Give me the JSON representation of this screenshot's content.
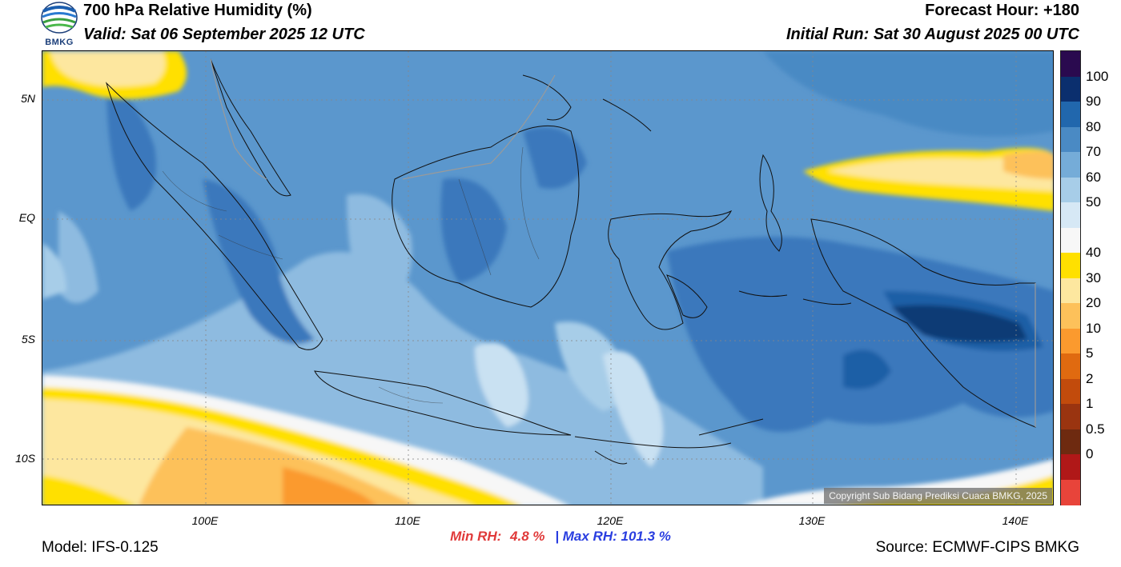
{
  "header": {
    "title": "700 hPa Relative Humidity (%)",
    "valid": "Valid: Sat 06 September 2025 12 UTC",
    "forecast_hour": "Forecast Hour: +180",
    "initial_run": "Initial Run: Sat 30 August 2025 00 UTC",
    "logo_text": "BMKG"
  },
  "map": {
    "copyright": "Copyright Sub Bidang Prediksi Cuaca BMKG, 2025",
    "lat_labels": [
      "5N",
      "EQ",
      "5S",
      "10S"
    ],
    "lon_labels": [
      "100E",
      "110E",
      "120E",
      "130E",
      "140E"
    ],
    "colors": {
      "dark_blue": "#0c3a75",
      "blue_90": "#2166ac",
      "blue_80": "#4a8ac4",
      "blue_70": "#6fa7d6",
      "blue_60": "#9ec8e6",
      "blue_50": "#d3e6f4",
      "white_40": "#f7f7f7",
      "yellow_30": "#ffe000",
      "yellow_20": "#fde79f",
      "orange_10": "#fdc15a",
      "orange_5": "#fb9a2e"
    }
  },
  "colorbar": {
    "labels": [
      "100",
      "90",
      "80",
      "70",
      "60",
      "50",
      "40",
      "30",
      "20",
      "10",
      "5",
      "2",
      "1",
      "0.5",
      "0"
    ],
    "colors": [
      "#2a0a4f",
      "#0b2f6e",
      "#2167ad",
      "#4a8ac4",
      "#75acd8",
      "#a7cde8",
      "#d6e8f5",
      "#f7f7f7",
      "#ffe000",
      "#fde79f",
      "#fdc15a",
      "#fb9a2e",
      "#e06a10",
      "#c24b0c",
      "#9a3410",
      "#6e2a10",
      "#b01818",
      "#e8443a"
    ]
  },
  "stats": {
    "min_label": "Min RH:",
    "min_value": "4.8 %",
    "separator": "|",
    "max_label": "Max RH:",
    "max_value": "101.3 %"
  },
  "footer": {
    "model": "Model: IFS-0.125",
    "source": "Source: ECMWF-CIPS BMKG"
  }
}
